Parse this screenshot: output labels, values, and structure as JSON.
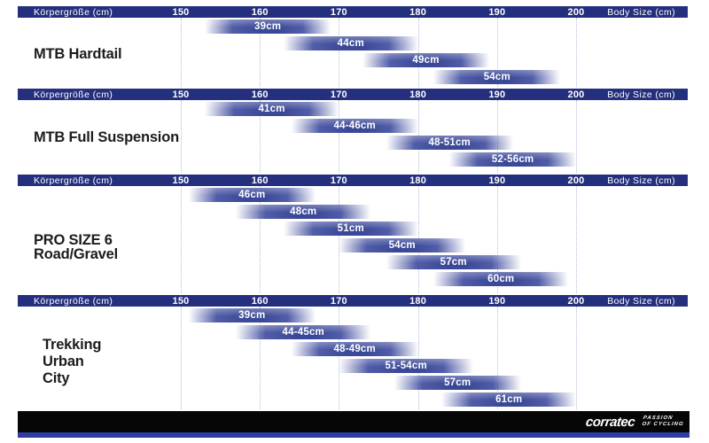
{
  "colors": {
    "header_bg": "#242f7d",
    "bar_solid": "#3a4897",
    "bar_mid": "#4a57a8",
    "gridline": "#b6bdd6",
    "side_label_text": "#1c1c1e",
    "footer_black": "#060606",
    "footer_stripe_blue": "#2e3ca3",
    "header_text": "#ffffff",
    "bar_label_text": "#ffffff"
  },
  "axis": {
    "label_left": "Körpergröße (cm)",
    "label_right": "Body Size (cm)",
    "ticks": [
      150,
      160,
      170,
      180,
      190,
      200
    ],
    "unit": "cm"
  },
  "chart_data": {
    "type": "bar",
    "variant": "gantt-size-chart",
    "title": "",
    "xlabel": "Body Size (cm)",
    "x_range": [
      145,
      207
    ],
    "x_ticks": [
      150,
      160,
      170,
      180,
      190,
      200
    ],
    "grid": "dotted-vertical",
    "sections": [
      {
        "name": "MTB Hardtail",
        "label_lines": [
          "MTB Hardtail"
        ],
        "bars": [
          {
            "size": "39cm",
            "from": 153,
            "to": 169
          },
          {
            "size": "44cm",
            "from": 163,
            "to": 180
          },
          {
            "size": "49cm",
            "from": 173,
            "to": 189
          },
          {
            "size": "54cm",
            "from": 182,
            "to": 198
          }
        ]
      },
      {
        "name": "MTB Full Suspension",
        "label_lines": [
          "MTB Full Suspension"
        ],
        "bars": [
          {
            "size": "41cm",
            "from": 153,
            "to": 170
          },
          {
            "size": "44-46cm",
            "from": 164,
            "to": 180
          },
          {
            "size": "48-51cm",
            "from": 176,
            "to": 192
          },
          {
            "size": "52-56cm",
            "from": 184,
            "to": 200
          }
        ]
      },
      {
        "name": "PRO SIZE 6 Road/Gravel",
        "label_lines": [
          "PRO SIZE 6",
          "Road/Gravel"
        ],
        "bars": [
          {
            "size": "46cm",
            "from": 151,
            "to": 167
          },
          {
            "size": "48cm",
            "from": 157,
            "to": 174
          },
          {
            "size": "51cm",
            "from": 163,
            "to": 180
          },
          {
            "size": "54cm",
            "from": 170,
            "to": 186
          },
          {
            "size": "57cm",
            "from": 176,
            "to": 193
          },
          {
            "size": "60cm",
            "from": 182,
            "to": 199
          }
        ]
      },
      {
        "name": "Trekking Urban City",
        "label_lines": [
          "Trekking",
          "Urban",
          "City"
        ],
        "bars": [
          {
            "size": "39cm",
            "from": 151,
            "to": 167
          },
          {
            "size": "44-45cm",
            "from": 157,
            "to": 174
          },
          {
            "size": "48-49cm",
            "from": 164,
            "to": 180
          },
          {
            "size": "51-54cm",
            "from": 170,
            "to": 187
          },
          {
            "size": "57cm",
            "from": 177,
            "to": 193
          },
          {
            "size": "61cm",
            "from": 183,
            "to": 200
          }
        ]
      }
    ]
  },
  "footer": {
    "brand": "corratec",
    "tagline_line1": "Passion",
    "tagline_line2": "of Cycling"
  }
}
